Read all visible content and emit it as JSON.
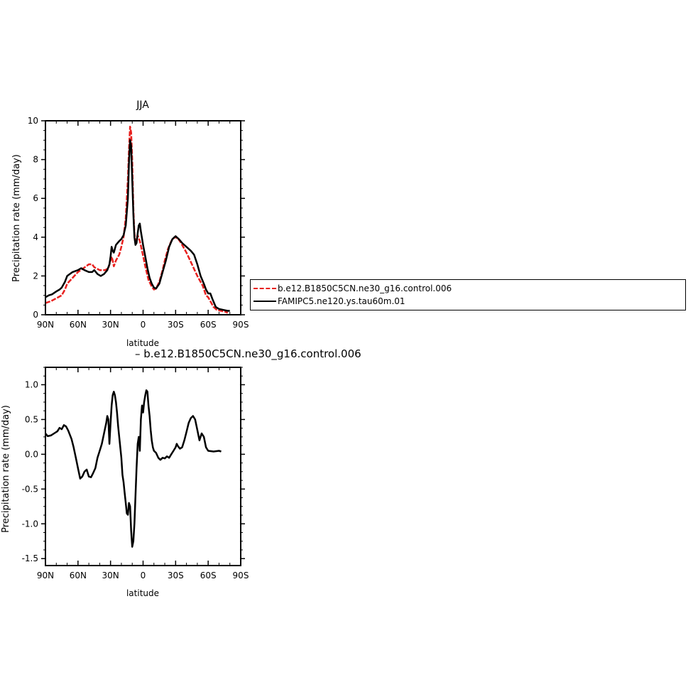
{
  "chart_data": [
    {
      "type": "line",
      "title": "JJA",
      "xlabel": "latitude",
      "ylabel": "Precipitation rate (mm/day)",
      "xlim": [
        90,
        -90
      ],
      "ylim": [
        0,
        10
      ],
      "x_ticks": [
        90,
        60,
        30,
        0,
        -30,
        -60,
        -90
      ],
      "x_tick_labels": [
        "90N",
        "60N",
        "30N",
        "0",
        "30S",
        "60S",
        "90S"
      ],
      "y_ticks": [
        0,
        2,
        4,
        6,
        8,
        10
      ],
      "y_tick_labels": [
        "0",
        "2",
        "4",
        "6",
        "8",
        "10"
      ],
      "legend_position": "right",
      "series": [
        {
          "name": "b.e12.B1850C5CN.ne30_g16.control.006",
          "color": "#e8211f",
          "style": "dashed",
          "points": [
            [
              90,
              0.6
            ],
            [
              85,
              0.7
            ],
            [
              80,
              0.85
            ],
            [
              75,
              1.0
            ],
            [
              72,
              1.3
            ],
            [
              70,
              1.6
            ],
            [
              65,
              1.9
            ],
            [
              60,
              2.2
            ],
            [
              55,
              2.4
            ],
            [
              50,
              2.6
            ],
            [
              47,
              2.6
            ],
            [
              45,
              2.45
            ],
            [
              40,
              2.3
            ],
            [
              35,
              2.3
            ],
            [
              32,
              2.4
            ],
            [
              30,
              2.8
            ],
            [
              29,
              3.0
            ],
            [
              28,
              2.8
            ],
            [
              27,
              2.5
            ],
            [
              25,
              2.8
            ],
            [
              22,
              3.1
            ],
            [
              20,
              3.5
            ],
            [
              18,
              4.0
            ],
            [
              16,
              5.0
            ],
            [
              14,
              7.0
            ],
            [
              13,
              8.5
            ],
            [
              12,
              9.7
            ],
            [
              11,
              9.4
            ],
            [
              10,
              8.0
            ],
            [
              9,
              5.5
            ],
            [
              8,
              4.2
            ],
            [
              7,
              3.8
            ],
            [
              6,
              3.85
            ],
            [
              5,
              4.1
            ],
            [
              3,
              3.8
            ],
            [
              1,
              3.3
            ],
            [
              -2,
              2.5
            ],
            [
              -5,
              1.8
            ],
            [
              -8,
              1.45
            ],
            [
              -10,
              1.3
            ],
            [
              -12,
              1.35
            ],
            [
              -15,
              1.7
            ],
            [
              -18,
              2.3
            ],
            [
              -20,
              2.8
            ],
            [
              -23,
              3.4
            ],
            [
              -26,
              3.8
            ],
            [
              -29,
              4.0
            ],
            [
              -32,
              3.95
            ],
            [
              -35,
              3.7
            ],
            [
              -40,
              3.2
            ],
            [
              -45,
              2.6
            ],
            [
              -50,
              2.0
            ],
            [
              -55,
              1.5
            ],
            [
              -58,
              1.0
            ],
            [
              -60,
              0.9
            ],
            [
              -62,
              0.7
            ],
            [
              -65,
              0.4
            ],
            [
              -68,
              0.25
            ],
            [
              -72,
              0.2
            ],
            [
              -76,
              0.15
            ],
            [
              -78,
              0.1
            ]
          ]
        },
        {
          "name": "FAMIPC5.ne120.ys.tau60m.01",
          "color": "#000000",
          "style": "solid",
          "points": [
            [
              90,
              0.9
            ],
            [
              87,
              1.0
            ],
            [
              84,
              1.05
            ],
            [
              80,
              1.2
            ],
            [
              77,
              1.3
            ],
            [
              75,
              1.4
            ],
            [
              72,
              1.7
            ],
            [
              70,
              2.0
            ],
            [
              65,
              2.2
            ],
            [
              60,
              2.3
            ],
            [
              57,
              2.4
            ],
            [
              54,
              2.3
            ],
            [
              50,
              2.2
            ],
            [
              47,
              2.2
            ],
            [
              45,
              2.3
            ],
            [
              42,
              2.1
            ],
            [
              39,
              2.0
            ],
            [
              36,
              2.1
            ],
            [
              33,
              2.3
            ],
            [
              31,
              2.6
            ],
            [
              30,
              3.0
            ],
            [
              29,
              3.5
            ],
            [
              28,
              3.3
            ],
            [
              27,
              3.2
            ],
            [
              25,
              3.6
            ],
            [
              22,
              3.8
            ],
            [
              20,
              3.9
            ],
            [
              18,
              4.1
            ],
            [
              16,
              4.6
            ],
            [
              14,
              6.0
            ],
            [
              13,
              7.8
            ],
            [
              12,
              9.0
            ],
            [
              11,
              8.7
            ],
            [
              10,
              7.0
            ],
            [
              9,
              5.2
            ],
            [
              8,
              4.0
            ],
            [
              7,
              3.6
            ],
            [
              6,
              3.7
            ],
            [
              5,
              4.2
            ],
            [
              4,
              4.6
            ],
            [
              3,
              4.7
            ],
            [
              2,
              4.3
            ],
            [
              0,
              3.6
            ],
            [
              -2,
              3.0
            ],
            [
              -4,
              2.4
            ],
            [
              -6,
              1.9
            ],
            [
              -8,
              1.6
            ],
            [
              -10,
              1.4
            ],
            [
              -12,
              1.35
            ],
            [
              -15,
              1.6
            ],
            [
              -18,
              2.2
            ],
            [
              -21,
              2.8
            ],
            [
              -24,
              3.5
            ],
            [
              -27,
              3.9
            ],
            [
              -30,
              4.05
            ],
            [
              -33,
              3.9
            ],
            [
              -36,
              3.7
            ],
            [
              -40,
              3.5
            ],
            [
              -44,
              3.3
            ],
            [
              -47,
              3.1
            ],
            [
              -50,
              2.6
            ],
            [
              -53,
              2.0
            ],
            [
              -56,
              1.6
            ],
            [
              -58,
              1.3
            ],
            [
              -60,
              1.1
            ],
            [
              -62,
              1.1
            ],
            [
              -64,
              0.8
            ],
            [
              -67,
              0.4
            ],
            [
              -70,
              0.3
            ],
            [
              -74,
              0.25
            ],
            [
              -78,
              0.2
            ],
            [
              -80,
              0.2
            ]
          ]
        }
      ]
    },
    {
      "type": "line",
      "title": "– b.e12.B1850C5CN.ne30_g16.control.006",
      "xlabel": "latitude",
      "ylabel": "Precipitation rate (mm/day)",
      "xlim": [
        90,
        -90
      ],
      "ylim": [
        -1.6,
        1.25
      ],
      "x_ticks": [
        90,
        60,
        30,
        0,
        -30,
        -60,
        -90
      ],
      "x_tick_labels": [
        "90N",
        "60N",
        "30N",
        "0",
        "30S",
        "60S",
        "90S"
      ],
      "y_ticks": [
        1.0,
        0.5,
        0.0,
        -0.5,
        -1.0,
        -1.5
      ],
      "y_tick_labels": [
        "1.0",
        "0.5",
        "0.0",
        "-0.5",
        "-1.0",
        "-1.5"
      ],
      "series": [
        {
          "color": "#000000",
          "style": "solid",
          "points": [
            [
              90,
              0.3
            ],
            [
              88,
              0.26
            ],
            [
              85,
              0.27
            ],
            [
              82,
              0.3
            ],
            [
              79,
              0.33
            ],
            [
              77,
              0.38
            ],
            [
              75,
              0.36
            ],
            [
              73,
              0.42
            ],
            [
              71,
              0.4
            ],
            [
              69,
              0.34
            ],
            [
              66,
              0.22
            ],
            [
              64,
              0.1
            ],
            [
              62,
              -0.05
            ],
            [
              60,
              -0.2
            ],
            [
              58,
              -0.35
            ],
            [
              56,
              -0.32
            ],
            [
              54,
              -0.25
            ],
            [
              52,
              -0.22
            ],
            [
              50,
              -0.32
            ],
            [
              48,
              -0.33
            ],
            [
              46,
              -0.27
            ],
            [
              44,
              -0.2
            ],
            [
              42,
              -0.05
            ],
            [
              40,
              0.05
            ],
            [
              38,
              0.15
            ],
            [
              36,
              0.3
            ],
            [
              34,
              0.45
            ],
            [
              33,
              0.55
            ],
            [
              32,
              0.5
            ],
            [
              31,
              0.15
            ],
            [
              30,
              0.45
            ],
            [
              29,
              0.7
            ],
            [
              28,
              0.85
            ],
            [
              27,
              0.9
            ],
            [
              26,
              0.85
            ],
            [
              25,
              0.75
            ],
            [
              24,
              0.6
            ],
            [
              23,
              0.4
            ],
            [
              22,
              0.25
            ],
            [
              21,
              0.1
            ],
            [
              20,
              -0.05
            ],
            [
              19,
              -0.3
            ],
            [
              18,
              -0.4
            ],
            [
              17,
              -0.55
            ],
            [
              16,
              -0.7
            ],
            [
              15,
              -0.85
            ],
            [
              14,
              -0.87
            ],
            [
              13,
              -0.7
            ],
            [
              12,
              -0.75
            ],
            [
              11,
              -1.1
            ],
            [
              10,
              -1.33
            ],
            [
              9,
              -1.25
            ],
            [
              8,
              -1.0
            ],
            [
              7,
              -0.6
            ],
            [
              6,
              -0.2
            ],
            [
              5,
              0.15
            ],
            [
              4,
              0.25
            ],
            [
              3,
              0.05
            ],
            [
              2,
              0.5
            ],
            [
              1,
              0.7
            ],
            [
              0,
              0.6
            ],
            [
              -1,
              0.75
            ],
            [
              -2,
              0.85
            ],
            [
              -3,
              0.92
            ],
            [
              -4,
              0.9
            ],
            [
              -5,
              0.7
            ],
            [
              -6,
              0.55
            ],
            [
              -7,
              0.35
            ],
            [
              -8,
              0.2
            ],
            [
              -9,
              0.1
            ],
            [
              -10,
              0.05
            ],
            [
              -12,
              0.02
            ],
            [
              -14,
              -0.05
            ],
            [
              -16,
              -0.08
            ],
            [
              -18,
              -0.05
            ],
            [
              -20,
              -0.06
            ],
            [
              -22,
              -0.03
            ],
            [
              -24,
              -0.05
            ],
            [
              -26,
              0.0
            ],
            [
              -28,
              0.05
            ],
            [
              -30,
              0.1
            ],
            [
              -31,
              0.15
            ],
            [
              -32,
              0.12
            ],
            [
              -34,
              0.08
            ],
            [
              -36,
              0.1
            ],
            [
              -38,
              0.2
            ],
            [
              -40,
              0.32
            ],
            [
              -42,
              0.45
            ],
            [
              -44,
              0.52
            ],
            [
              -46,
              0.55
            ],
            [
              -48,
              0.5
            ],
            [
              -50,
              0.35
            ],
            [
              -52,
              0.2
            ],
            [
              -54,
              0.3
            ],
            [
              -56,
              0.25
            ],
            [
              -58,
              0.1
            ],
            [
              -60,
              0.05
            ],
            [
              -65,
              0.04
            ],
            [
              -70,
              0.05
            ],
            [
              -72,
              0.04
            ]
          ]
        }
      ]
    }
  ]
}
